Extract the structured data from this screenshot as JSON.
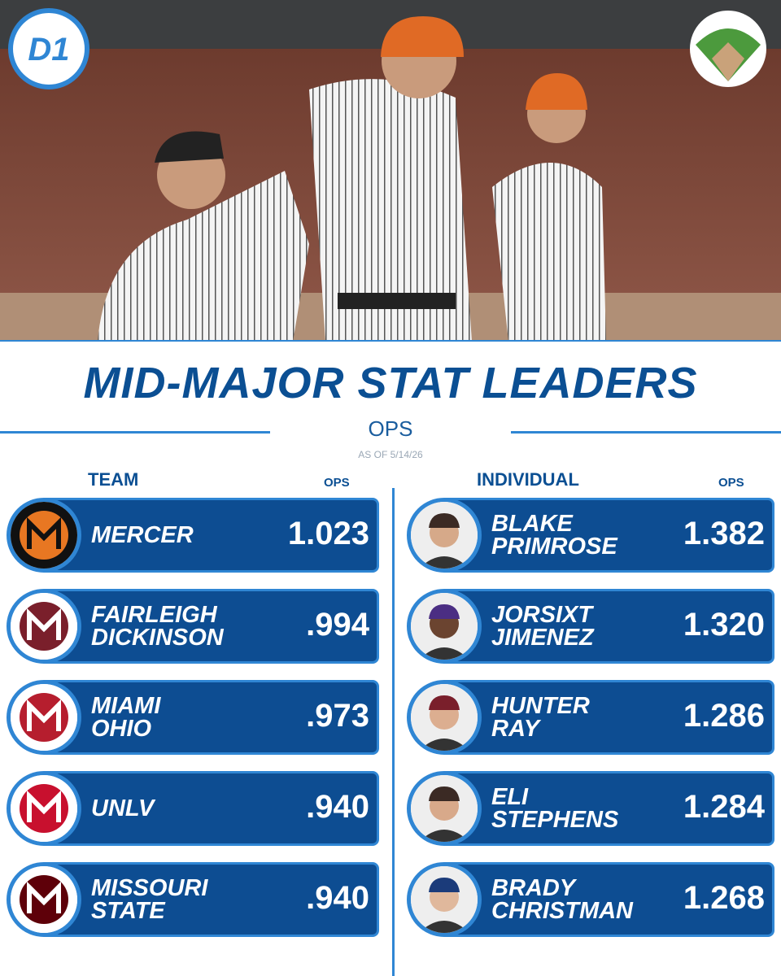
{
  "brand": {
    "logo_text": "D1"
  },
  "header": {
    "title": "MID-MAJOR STAT LEADERS",
    "stat": "OPS",
    "as_of": "AS OF 5/14/26"
  },
  "team": {
    "heading": "TEAM",
    "stat_heading": "OPS",
    "rows": [
      {
        "name": [
          "MERCER"
        ],
        "value": "1.023"
      },
      {
        "name": [
          "FAIRLEIGH",
          "DICKINSON"
        ],
        "value": ".994"
      },
      {
        "name": [
          "MIAMI",
          "OHIO"
        ],
        "value": ".973"
      },
      {
        "name": [
          "UNLV"
        ],
        "value": ".940"
      },
      {
        "name": [
          "MISSOURI",
          "STATE"
        ],
        "value": ".940"
      }
    ]
  },
  "individual": {
    "heading": "INDIVIDUAL",
    "stat_heading": "OPS",
    "rows": [
      {
        "name": [
          "BLAKE",
          "PRIMROSE"
        ],
        "value": "1.382"
      },
      {
        "name": [
          "JORSIXT",
          "JIMENEZ"
        ],
        "value": "1.320"
      },
      {
        "name": [
          "HUNTER",
          "RAY"
        ],
        "value": "1.286"
      },
      {
        "name": [
          "ELI",
          "STEPHENS"
        ],
        "value": "1.284"
      },
      {
        "name": [
          "BRADY",
          "CHRISTMAN"
        ],
        "value": "1.268"
      }
    ]
  }
}
